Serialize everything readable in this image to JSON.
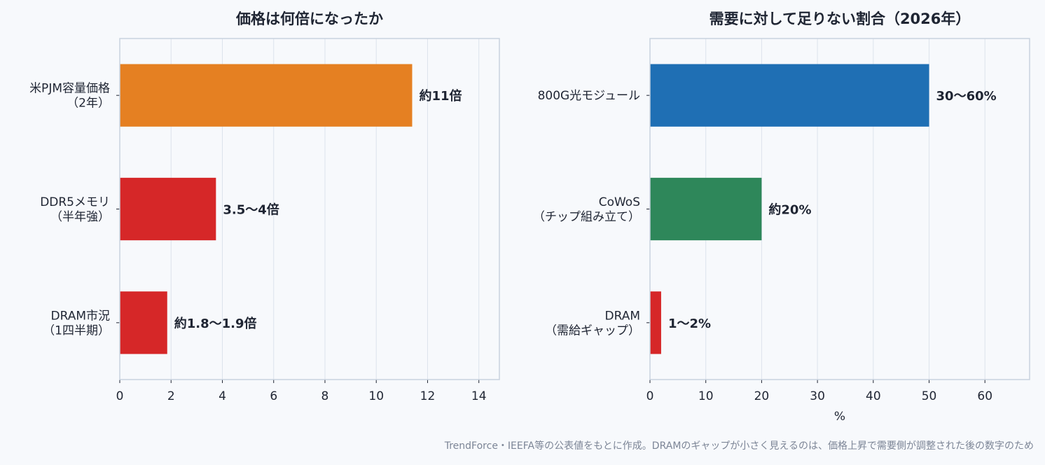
{
  "chart_data": [
    {
      "type": "bar",
      "orientation": "horizontal",
      "title": "価格は何倍になったか",
      "xlabel": "",
      "xlim": [
        0,
        14.8
      ],
      "xticks": [
        0,
        2,
        4,
        6,
        8,
        10,
        12,
        14
      ],
      "grid": true,
      "categories": [
        [
          "米PJM容量価格",
          "（2年）"
        ],
        [
          "DDR5メモリ",
          "（半年強）"
        ],
        [
          "DRAM市況",
          "（1四半期）"
        ]
      ],
      "values": [
        11.4,
        3.75,
        1.85
      ],
      "data_labels": [
        "約11倍",
        "3.5〜4倍",
        "約1.8〜1.9倍"
      ],
      "colors": [
        "#e58022",
        "#d62728",
        "#d62728"
      ]
    },
    {
      "type": "bar",
      "orientation": "horizontal",
      "title": "需要に対して足りない割合（2026年）",
      "xlabel": "%",
      "xlim": [
        0,
        68
      ],
      "xticks": [
        0,
        10,
        20,
        30,
        40,
        50,
        60
      ],
      "grid": true,
      "categories": [
        [
          "800G光モジュール"
        ],
        [
          "CoWoS",
          "（チップ組み立て）"
        ],
        [
          "DRAM",
          "（需給ギャップ）"
        ]
      ],
      "values": [
        50,
        20,
        2
      ],
      "data_labels": [
        "30〜60%",
        "約20%",
        "1〜2%"
      ],
      "colors": [
        "#1f6fb4",
        "#2e875a",
        "#d62728"
      ]
    }
  ],
  "footnote": "TrendForce・IEEFA等の公表値をもとに作成。DRAMのギャップが小さく見えるのは、価格上昇で需要側が調整された後の数字のため"
}
